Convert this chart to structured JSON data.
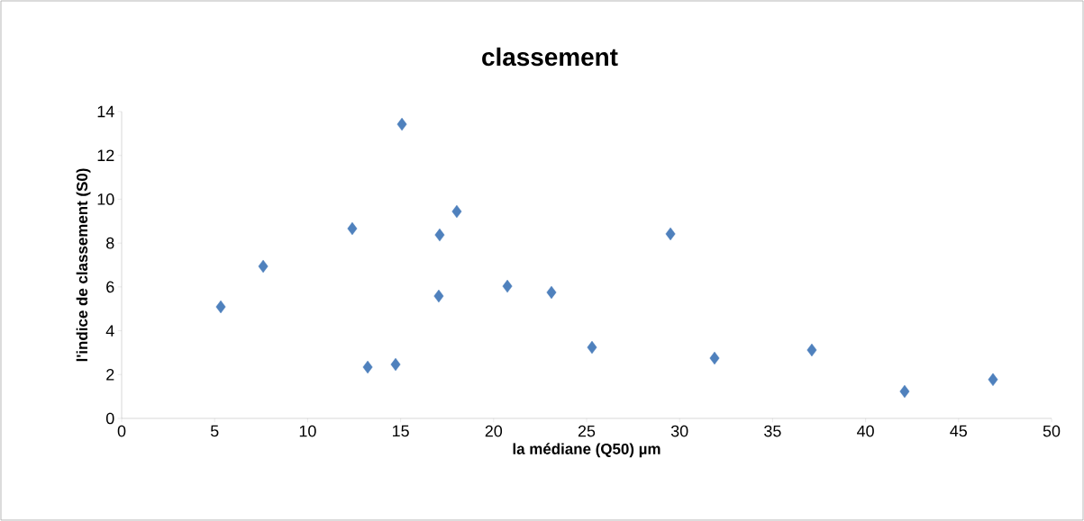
{
  "chart_data": {
    "type": "scatter",
    "title": "classement",
    "xlabel": "la médiane (Q50) µm",
    "ylabel": "l'indice de classement (S0)",
    "x": [
      5.33,
      7.61,
      12.4,
      13.23,
      14.73,
      15.07,
      17.1,
      17.05,
      18.02,
      20.74,
      23.11,
      25.29,
      29.51,
      31.88,
      37.11,
      42.1,
      46.85
    ],
    "values": [
      5.09,
      6.94,
      8.66,
      2.34,
      2.46,
      13.42,
      8.37,
      5.58,
      9.44,
      6.03,
      5.75,
      3.24,
      8.42,
      2.75,
      3.12,
      1.23,
      1.77
    ],
    "color": "#4f81bd",
    "marker": "diamond",
    "grid": false,
    "xlim": [
      0,
      50
    ],
    "xticks": [
      0,
      5,
      10,
      15,
      20,
      25,
      30,
      35,
      40,
      45,
      50
    ],
    "ylim": [
      0,
      14
    ],
    "yticks": [
      0,
      2,
      4,
      6,
      8,
      10,
      12,
      14
    ]
  }
}
